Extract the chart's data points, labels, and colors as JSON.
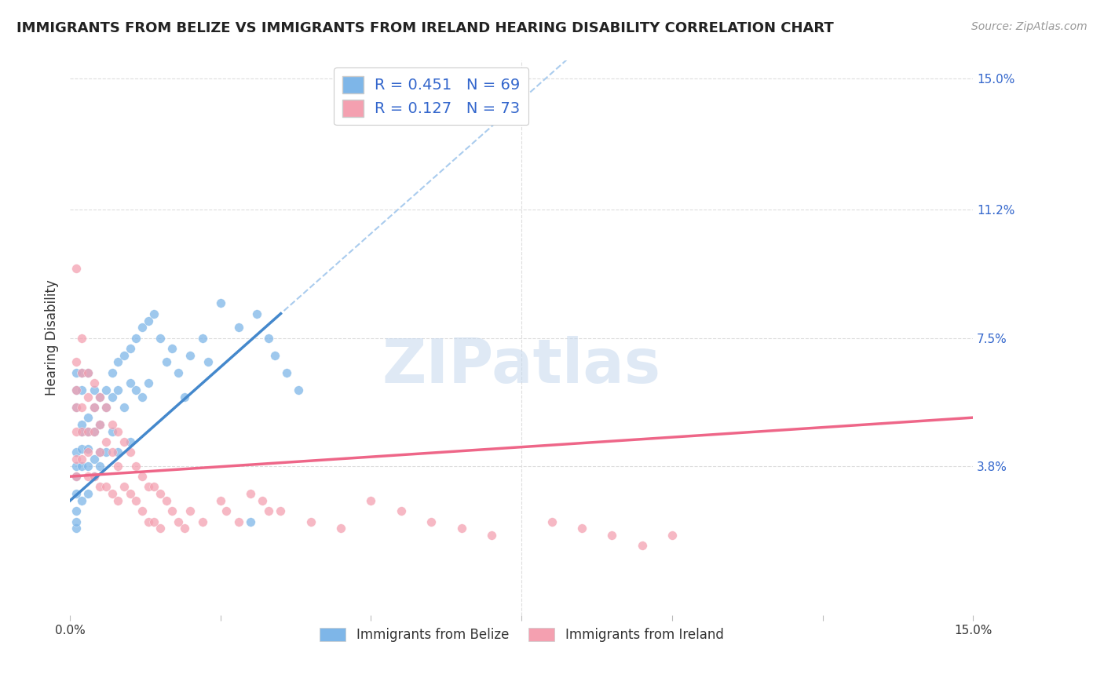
{
  "title": "IMMIGRANTS FROM BELIZE VS IMMIGRANTS FROM IRELAND HEARING DISABILITY CORRELATION CHART",
  "source": "Source: ZipAtlas.com",
  "ylabel": "Hearing Disability",
  "x_min": 0.0,
  "x_max": 0.15,
  "y_min": -0.005,
  "y_max": 0.155,
  "y_ticks_right": [
    0.038,
    0.075,
    0.112,
    0.15
  ],
  "y_tick_labels_right": [
    "3.8%",
    "7.5%",
    "11.2%",
    "15.0%"
  ],
  "x_ticks": [
    0.0,
    0.025,
    0.05,
    0.075,
    0.1,
    0.125,
    0.15
  ],
  "x_tick_labels": [
    "0.0%",
    "",
    "",
    "",
    "",
    "",
    "15.0%"
  ],
  "belize_color": "#7EB6E8",
  "ireland_color": "#F4A0B0",
  "trend_belize_color": "#4488CC",
  "trend_ireland_color": "#EE6688",
  "dashed_color": "#AACCEE",
  "belize_R": 0.451,
  "belize_N": 69,
  "ireland_R": 0.127,
  "ireland_N": 73,
  "legend_color": "#3366CC",
  "watermark": "ZIPatlas",
  "belize_trend_x0": 0.0,
  "belize_trend_y0": 0.028,
  "belize_trend_x1": 0.035,
  "belize_trend_y1": 0.082,
  "ireland_trend_x0": 0.0,
  "ireland_trend_y0": 0.035,
  "ireland_trend_x1": 0.15,
  "ireland_trend_y1": 0.052,
  "belize_x": [
    0.001,
    0.001,
    0.001,
    0.001,
    0.001,
    0.001,
    0.001,
    0.001,
    0.001,
    0.001,
    0.002,
    0.002,
    0.002,
    0.002,
    0.002,
    0.002,
    0.002,
    0.003,
    0.003,
    0.003,
    0.003,
    0.003,
    0.003,
    0.004,
    0.004,
    0.004,
    0.004,
    0.004,
    0.005,
    0.005,
    0.005,
    0.005,
    0.006,
    0.006,
    0.006,
    0.007,
    0.007,
    0.007,
    0.008,
    0.008,
    0.008,
    0.009,
    0.009,
    0.01,
    0.01,
    0.01,
    0.011,
    0.011,
    0.012,
    0.012,
    0.013,
    0.013,
    0.014,
    0.015,
    0.016,
    0.017,
    0.018,
    0.019,
    0.02,
    0.022,
    0.023,
    0.025,
    0.028,
    0.03,
    0.031,
    0.033,
    0.034,
    0.036,
    0.038
  ],
  "belize_y": [
    0.038,
    0.042,
    0.035,
    0.03,
    0.025,
    0.02,
    0.055,
    0.06,
    0.065,
    0.022,
    0.048,
    0.05,
    0.043,
    0.038,
    0.028,
    0.06,
    0.065,
    0.052,
    0.048,
    0.043,
    0.038,
    0.03,
    0.065,
    0.055,
    0.048,
    0.04,
    0.035,
    0.06,
    0.058,
    0.05,
    0.042,
    0.038,
    0.06,
    0.055,
    0.042,
    0.065,
    0.058,
    0.048,
    0.068,
    0.06,
    0.042,
    0.07,
    0.055,
    0.072,
    0.062,
    0.045,
    0.075,
    0.06,
    0.078,
    0.058,
    0.08,
    0.062,
    0.082,
    0.075,
    0.068,
    0.072,
    0.065,
    0.058,
    0.07,
    0.075,
    0.068,
    0.085,
    0.078,
    0.022,
    0.082,
    0.075,
    0.07,
    0.065,
    0.06
  ],
  "ireland_x": [
    0.001,
    0.001,
    0.001,
    0.001,
    0.001,
    0.001,
    0.001,
    0.002,
    0.002,
    0.002,
    0.002,
    0.002,
    0.003,
    0.003,
    0.003,
    0.003,
    0.003,
    0.004,
    0.004,
    0.004,
    0.004,
    0.005,
    0.005,
    0.005,
    0.005,
    0.006,
    0.006,
    0.006,
    0.007,
    0.007,
    0.007,
    0.008,
    0.008,
    0.008,
    0.009,
    0.009,
    0.01,
    0.01,
    0.011,
    0.011,
    0.012,
    0.012,
    0.013,
    0.013,
    0.014,
    0.014,
    0.015,
    0.015,
    0.016,
    0.017,
    0.018,
    0.019,
    0.02,
    0.022,
    0.025,
    0.026,
    0.028,
    0.03,
    0.032,
    0.033,
    0.035,
    0.04,
    0.045,
    0.05,
    0.055,
    0.06,
    0.065,
    0.07,
    0.08,
    0.085,
    0.09,
    0.095,
    0.1
  ],
  "ireland_y": [
    0.068,
    0.06,
    0.055,
    0.048,
    0.04,
    0.035,
    0.095,
    0.075,
    0.065,
    0.055,
    0.048,
    0.04,
    0.065,
    0.058,
    0.048,
    0.042,
    0.035,
    0.062,
    0.055,
    0.048,
    0.035,
    0.058,
    0.05,
    0.042,
    0.032,
    0.055,
    0.045,
    0.032,
    0.05,
    0.042,
    0.03,
    0.048,
    0.038,
    0.028,
    0.045,
    0.032,
    0.042,
    0.03,
    0.038,
    0.028,
    0.035,
    0.025,
    0.032,
    0.022,
    0.032,
    0.022,
    0.03,
    0.02,
    0.028,
    0.025,
    0.022,
    0.02,
    0.025,
    0.022,
    0.028,
    0.025,
    0.022,
    0.03,
    0.028,
    0.025,
    0.025,
    0.022,
    0.02,
    0.028,
    0.025,
    0.022,
    0.02,
    0.018,
    0.022,
    0.02,
    0.018,
    0.015,
    0.018
  ]
}
